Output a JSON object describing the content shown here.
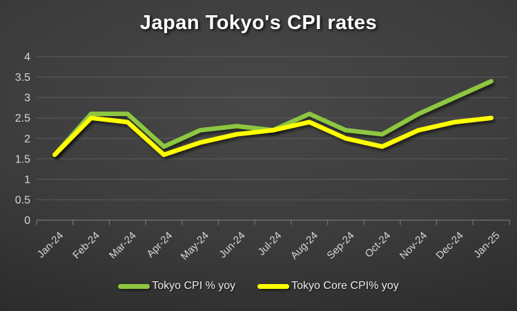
{
  "title": "Japan Tokyo's CPI rates",
  "colors": {
    "background_center": "#484848",
    "background_edge": "#1d1d1d",
    "gridline": "#6f6f6f",
    "axis_line": "#8a8a8a",
    "axis_text": "#d6d6d6",
    "title_text": "#ffffff",
    "legend_text": "#e9e9e9",
    "series_cpi": "#8dc63f",
    "series_core_cpi": "#ffff00"
  },
  "chart_data": {
    "type": "line",
    "title": "Japan Tokyo's CPI rates",
    "xlabel": "",
    "ylabel": "",
    "categories": [
      "Jan-24",
      "Feb-24",
      "Mar-24",
      "Apr-24",
      "May-24",
      "Jun-24",
      "Jul-24",
      "Aug-24",
      "Sep-24",
      "Oct-24",
      "Nov-24",
      "Dec-24",
      "Jan-25"
    ],
    "series": [
      {
        "name": "Tokyo CPI % yoy",
        "color": "#8dc63f",
        "values": [
          1.6,
          2.6,
          2.6,
          1.8,
          2.2,
          2.3,
          2.2,
          2.6,
          2.2,
          2.1,
          2.6,
          3.0,
          3.4
        ]
      },
      {
        "name": "Tokyo Core CPI% yoy",
        "color": "#ffff00",
        "values": [
          1.6,
          2.5,
          2.4,
          1.6,
          1.9,
          2.1,
          2.2,
          2.4,
          2.0,
          1.8,
          2.2,
          2.4,
          2.5
        ]
      }
    ],
    "ylim": [
      0,
      4
    ],
    "y_ticks": [
      "0",
      "0.5",
      "1",
      "1.5",
      "2",
      "2.5",
      "3",
      "3.5",
      "4"
    ],
    "grid": true,
    "legend_position": "bottom",
    "x_label_rotation_deg": -45
  }
}
